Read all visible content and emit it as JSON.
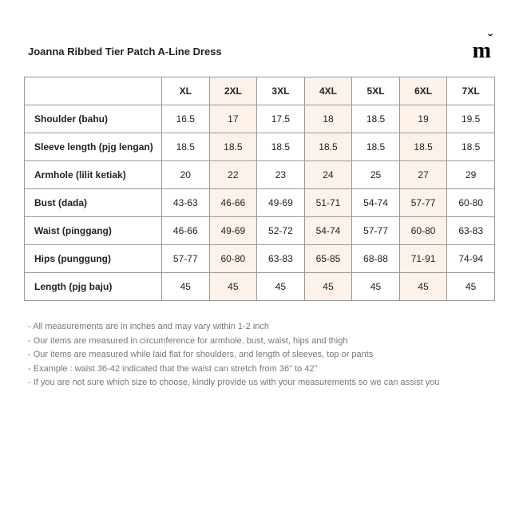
{
  "title": "Joanna Ribbed Tier Patch A-Line Dress",
  "logo": "m",
  "colors": {
    "highlight_bg": "#fdf2ea",
    "border": "#999999",
    "text": "#222222",
    "notes_text": "#777777",
    "background": "#ffffff"
  },
  "table": {
    "columns": [
      "XL",
      "2XL",
      "3XL",
      "4XL",
      "5XL",
      "6XL",
      "7XL"
    ],
    "highlight_cols": [
      1,
      3,
      5
    ],
    "rows": [
      {
        "label": "Shoulder (bahu)",
        "values": [
          "16.5",
          "17",
          "17.5",
          "18",
          "18.5",
          "19",
          "19.5"
        ]
      },
      {
        "label": "Sleeve length (pjg lengan)",
        "values": [
          "18.5",
          "18.5",
          "18.5",
          "18.5",
          "18.5",
          "18.5",
          "18.5"
        ]
      },
      {
        "label": "Armhole (lilit ketiak)",
        "values": [
          "20",
          "22",
          "23",
          "24",
          "25",
          "27",
          "29"
        ]
      },
      {
        "label": "Bust (dada)",
        "values": [
          "43-63",
          "46-66",
          "49-69",
          "51-71",
          "54-74",
          "57-77",
          "60-80"
        ]
      },
      {
        "label": "Waist (pinggang)",
        "values": [
          "46-66",
          "49-69",
          "52-72",
          "54-74",
          "57-77",
          "60-80",
          "63-83"
        ]
      },
      {
        "label": "Hips (punggung)",
        "values": [
          "57-77",
          "60-80",
          "63-83",
          "65-85",
          "68-88",
          "71-91",
          "74-94"
        ]
      },
      {
        "label": "Length (pjg baju)",
        "values": [
          "45",
          "45",
          "45",
          "45",
          "45",
          "45",
          "45"
        ]
      }
    ]
  },
  "notes": [
    "All measurements are in inches and may vary within 1-2 inch",
    "Our items are measured in circumference for armhole, bust, waist, hips and thigh",
    "Our items are measured while laid flat for shoulders, and length of sleeves, top or pants",
    "Example : waist 36-42 indicated that the waist can stretch from 36\" to 42\"",
    "If you are not sure which size to choose, kindly provide us with your measurements so we can assist you"
  ]
}
